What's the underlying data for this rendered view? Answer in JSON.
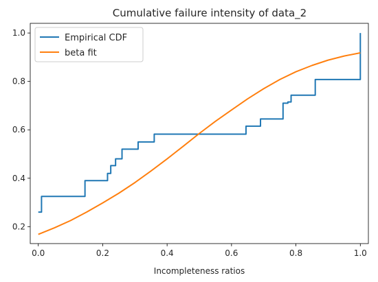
{
  "chart_data": {
    "type": "line",
    "title": "Cumulative failure intensity of data_2",
    "xlabel": "Incompleteness ratios",
    "ylabel": "",
    "xlim": [
      -0.025,
      1.025
    ],
    "ylim": [
      0.13,
      1.04
    ],
    "xticks": [
      0.0,
      0.2,
      0.4,
      0.6,
      0.8,
      1.0
    ],
    "xtick_labels": [
      "0.0",
      "0.2",
      "0.4",
      "0.6",
      "0.8",
      "1.0"
    ],
    "yticks": [
      0.2,
      0.4,
      0.6,
      0.8,
      1.0
    ],
    "ytick_labels": [
      "0.2",
      "0.4",
      "0.6",
      "0.8",
      "1.0"
    ],
    "grid": false,
    "legend_position": "top-left",
    "series": [
      {
        "name": "Empirical CDF",
        "color": "#1f77b4",
        "style": "step",
        "x": [
          0.0,
          0.01,
          0.145,
          0.215,
          0.225,
          0.24,
          0.26,
          0.3,
          0.31,
          0.35,
          0.36,
          0.63,
          0.645,
          0.68,
          0.69,
          0.75,
          0.76,
          0.775,
          0.785,
          0.85,
          0.86,
          0.99,
          1.0
        ],
        "y": [
          0.26,
          0.325,
          0.39,
          0.42,
          0.452,
          0.48,
          0.52,
          0.52,
          0.55,
          0.55,
          0.582,
          0.582,
          0.615,
          0.615,
          0.645,
          0.645,
          0.71,
          0.715,
          0.743,
          0.743,
          0.808,
          0.808,
          1.0
        ]
      },
      {
        "name": "beta fit",
        "color": "#ff7f0e",
        "style": "line",
        "x": [
          0.0,
          0.05,
          0.1,
          0.15,
          0.2,
          0.25,
          0.3,
          0.35,
          0.4,
          0.45,
          0.5,
          0.55,
          0.6,
          0.65,
          0.7,
          0.75,
          0.8,
          0.85,
          0.9,
          0.95,
          1.0
        ],
        "y": [
          0.168,
          0.195,
          0.225,
          0.26,
          0.298,
          0.338,
          0.382,
          0.43,
          0.48,
          0.532,
          0.585,
          0.635,
          0.682,
          0.728,
          0.77,
          0.808,
          0.84,
          0.866,
          0.888,
          0.905,
          0.918
        ]
      }
    ]
  }
}
